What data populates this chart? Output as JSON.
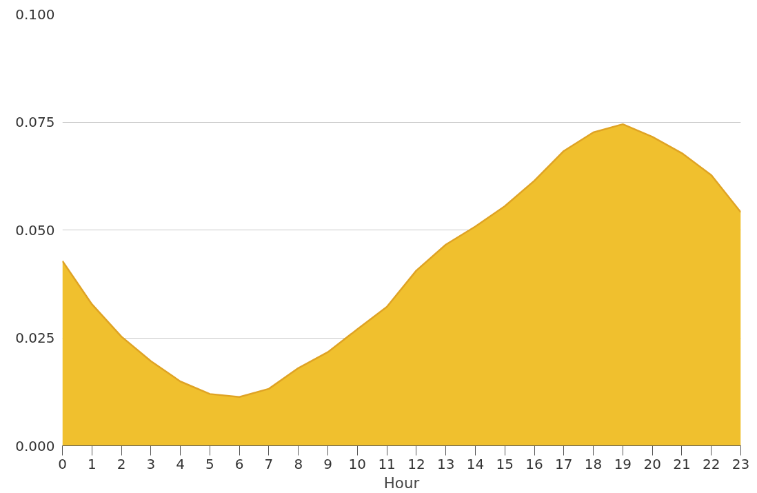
{
  "chart_data": {
    "type": "area",
    "xlabel": "Hour",
    "x": [
      0,
      1,
      2,
      3,
      4,
      5,
      6,
      7,
      8,
      9,
      10,
      11,
      12,
      13,
      14,
      15,
      16,
      17,
      18,
      19,
      20,
      21,
      22,
      23
    ],
    "series": [
      {
        "color": "#f0c02e",
        "values": [
          0.0428,
          0.0328,
          0.0253,
          0.0196,
          0.0149,
          0.012,
          0.0113,
          0.0132,
          0.018,
          0.0217,
          0.027,
          0.0322,
          0.0406,
          0.0466,
          0.0508,
          0.0555,
          0.0614,
          0.0683,
          0.0726,
          0.0745,
          0.0716,
          0.0678,
          0.0627,
          0.0541
        ]
      }
    ],
    "xlim": [
      0,
      23
    ],
    "xticks": [
      0,
      1,
      2,
      3,
      4,
      5,
      6,
      7,
      8,
      9,
      10,
      11,
      12,
      13,
      14,
      15,
      16,
      17,
      18,
      19,
      20,
      21,
      22,
      23
    ],
    "ylim": [
      0,
      0.1
    ],
    "yticks": [
      {
        "value": 0,
        "label": "0.000"
      },
      {
        "value": 0.025,
        "label": "0.025"
      },
      {
        "value": 0.05,
        "label": "0.050"
      },
      {
        "value": 0.075,
        "label": "0.075"
      },
      {
        "value": 0.1,
        "label": "0.100"
      }
    ],
    "grid": "y"
  }
}
